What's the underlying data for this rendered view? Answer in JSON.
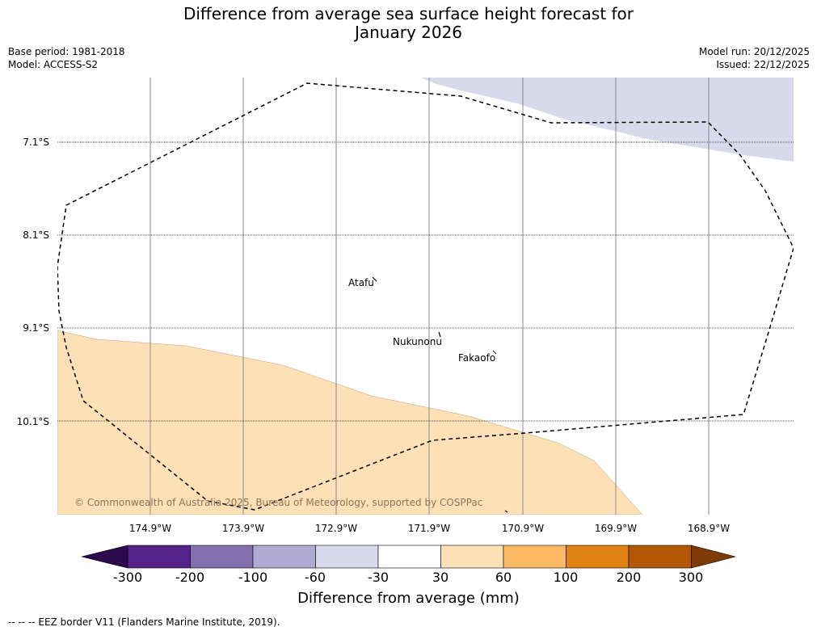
{
  "title_line1": "Difference from average sea surface height forecast for",
  "title_line2": "January 2026",
  "base_period": "Base period: 1981-2018",
  "model": "Model: ACCESS-S2",
  "model_run": "Model run: 20/12/2025",
  "issued": "Issued: 22/12/2025",
  "map": {
    "lat_labels": [
      "7.1°S",
      "8.1°S",
      "9.1°S",
      "10.1°S"
    ],
    "lon_labels": [
      "174.9°W",
      "173.9°W",
      "172.9°W",
      "171.9°W",
      "170.9°W",
      "169.9°W",
      "168.9°W"
    ],
    "places": [
      "Atafu",
      "Nukunonu",
      "Fakaofo"
    ],
    "copyright": "© Commonwealth of Australia 2025, Bureau of Meteorology, supported by COSPPac"
  },
  "colorbar": {
    "ticks": [
      "-300",
      "-200",
      "-100",
      "-60",
      "-30",
      "30",
      "60",
      "100",
      "200",
      "300"
    ],
    "colors": [
      "#2d0a4e",
      "#542289",
      "#8170ad",
      "#b0a9d1",
      "#d9d9ec",
      "#ffffff",
      "#fee0b6",
      "#fdb863",
      "#e08214",
      "#b35806",
      "#7f3b08"
    ],
    "title": "Difference from average (mm)"
  },
  "footnote": "--  --  -- EEZ border V11 (Flanders Marine Institute, 2019)."
}
